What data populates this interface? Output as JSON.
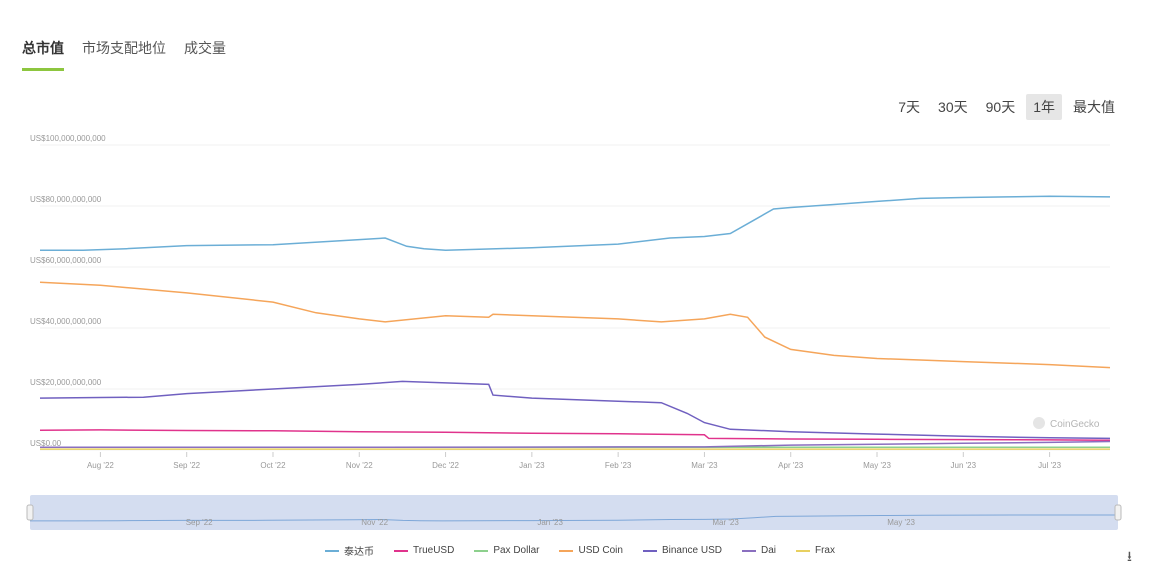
{
  "tabs": [
    {
      "label": "总市值",
      "active": true
    },
    {
      "label": "市场支配地位",
      "active": false
    },
    {
      "label": "成交量",
      "active": false
    }
  ],
  "ranges": [
    {
      "label": "7天",
      "active": false
    },
    {
      "label": "30天",
      "active": false
    },
    {
      "label": "90天",
      "active": false
    },
    {
      "label": "1年",
      "active": true
    },
    {
      "label": "最大值",
      "active": false
    }
  ],
  "watermark": "CoinGecko",
  "chart_data": {
    "type": "line",
    "title": "",
    "ylabel": "",
    "xlabel": "",
    "ylim": [
      0,
      100000000000
    ],
    "yticks": [
      0,
      20000000000,
      40000000000,
      60000000000,
      80000000000,
      100000000000
    ],
    "ytick_labels": [
      "US$0.00",
      "US$20,000,000,000",
      "US$40,000,000,000",
      "US$60,000,000,000",
      "US$80,000,000,000",
      "US$100,000,000,000"
    ],
    "xlim": [
      -0.7,
      11.7
    ],
    "xticks": [
      0,
      1,
      2,
      3,
      4,
      5,
      6,
      7,
      8,
      9,
      10,
      11
    ],
    "xtick_labels": [
      "Aug '22",
      "Sep '22",
      "Oct '22",
      "Nov '22",
      "Dec '22",
      "Jan '23",
      "Feb '23",
      "Mar '23",
      "Apr '23",
      "May '23",
      "Jun '23",
      "Jul '23"
    ],
    "series": [
      {
        "name": "泰达币",
        "color": "#6baed6",
        "x": [
          -0.7,
          -0.2,
          0.3,
          1,
          2,
          3,
          3.3,
          3.55,
          3.75,
          4,
          5,
          6,
          6.6,
          7,
          7.3,
          7.55,
          7.8,
          8,
          8.5,
          9,
          9.5,
          10,
          10.5,
          11,
          11.7
        ],
        "values": [
          65.5,
          65.5,
          66,
          67,
          67.3,
          69,
          69.5,
          66.8,
          66,
          65.5,
          66.3,
          67.5,
          69.5,
          70,
          71,
          75,
          79,
          79.5,
          80.5,
          81.5,
          82.5,
          82.8,
          83,
          83.2,
          83
        ]
      },
      {
        "name": "TrueUSD",
        "color": "#e0338c",
        "x": [
          -0.7,
          0,
          1,
          2,
          3,
          4,
          5,
          6,
          7,
          7.05,
          8,
          9,
          10,
          11,
          11.7
        ],
        "values": [
          6.5,
          6.6,
          6.4,
          6.3,
          6.0,
          5.8,
          5.5,
          5.3,
          5.0,
          3.8,
          3.6,
          3.5,
          3.4,
          3.3,
          3.2
        ]
      },
      {
        "name": "Pax Dollar",
        "color": "#8dd08d",
        "x": [
          -0.7,
          11.7
        ],
        "values": [
          0.9,
          0.9
        ]
      },
      {
        "name": "USD Coin",
        "color": "#f5a55a",
        "x": [
          -0.7,
          0,
          1,
          2,
          2.5,
          3,
          3.3,
          4,
          4.5,
          4.55,
          5,
          6,
          6.5,
          7,
          7.3,
          7.5,
          7.7,
          8,
          8.5,
          9,
          9.5,
          10,
          10.5,
          11,
          11.7
        ],
        "values": [
          55,
          54,
          51.5,
          48.5,
          45,
          43,
          42,
          44,
          43.5,
          44.5,
          44,
          43,
          42,
          43,
          44.5,
          43.5,
          37,
          33,
          31,
          30,
          29.5,
          29,
          28.5,
          28,
          27
        ]
      },
      {
        "name": "Binance USD",
        "color": "#7060c0",
        "x": [
          -0.7,
          0,
          0.5,
          1,
          2,
          3,
          3.5,
          4,
          4.5,
          4.55,
          5,
          6,
          6.5,
          6.8,
          7,
          7.3,
          8,
          9,
          10,
          11,
          11.7
        ],
        "values": [
          17,
          17.2,
          17.3,
          18.5,
          20,
          21.5,
          22.5,
          22,
          21.5,
          18,
          17,
          16,
          15.5,
          12,
          9,
          6.8,
          6,
          5.2,
          4.5,
          4,
          3.8
        ]
      },
      {
        "name": "Dai",
        "color": "#8a6fbf",
        "x": [
          -0.7,
          3,
          6,
          7,
          8,
          9,
          10,
          11,
          11.7
        ],
        "values": [
          0.9,
          0.9,
          1.0,
          1.0,
          1.6,
          1.9,
          2.2,
          2.5,
          2.8
        ]
      },
      {
        "name": "Frax",
        "color": "#e8d060",
        "x": [
          -0.7,
          11.7
        ],
        "values": [
          0.3,
          0.3
        ]
      }
    ],
    "navigator": {
      "label": "navigator range selector",
      "x_labels": [
        "Sep '22",
        "Nov '22",
        "Jan '23",
        "Mar '23",
        "May '23"
      ]
    },
    "legend_position": "bottom-center"
  },
  "export_icon": "download-icon"
}
